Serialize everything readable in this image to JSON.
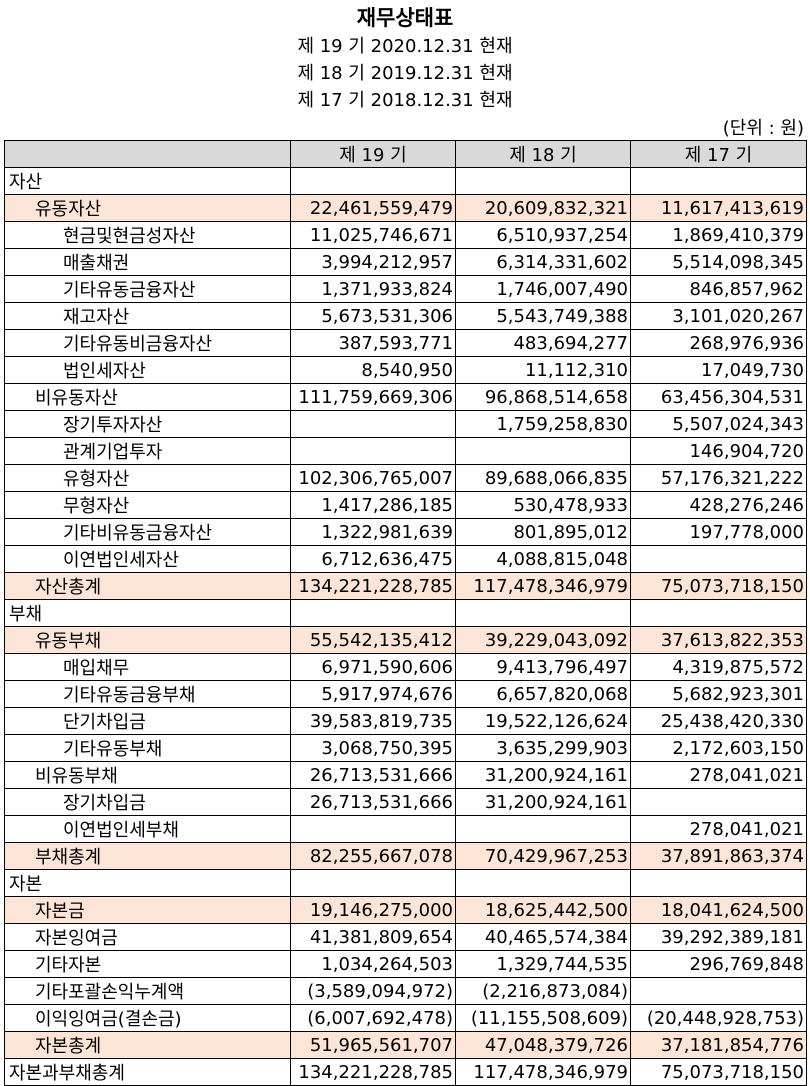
{
  "header": {
    "title": "재무상태표",
    "periods": [
      "제 19 기 2020.12.31 현재",
      "제 18 기 2019.12.31 현재",
      "제 17 기 2018.12.31 현재"
    ],
    "unit": "(단위 : 원)"
  },
  "table": {
    "columns": [
      "제 19 기",
      "제 18 기",
      "제 17 기"
    ],
    "rows": [
      [
        "자산",
        null,
        null,
        null
      ],
      [
        "유동자산",
        "22,461,559,479",
        "20,609,832,321",
        "11,617,413,619"
      ],
      [
        "현금및현금성자산",
        "11,025,746,671",
        "6,510,937,254",
        "1,869,410,379"
      ],
      [
        "매출채권",
        "3,994,212,957",
        "6,314,331,602",
        "5,514,098,345"
      ],
      [
        "기타유동금융자산",
        "1,371,933,824",
        "1,746,007,490",
        "846,857,962"
      ],
      [
        "재고자산",
        "5,673,531,306",
        "5,543,749,388",
        "3,101,020,267"
      ],
      [
        "기타유동비금융자산",
        "387,593,771",
        "483,694,277",
        "268,976,936"
      ],
      [
        "법인세자산",
        "8,540,950",
        "11,112,310",
        "17,049,730"
      ],
      [
        "비유동자산",
        "111,759,669,306",
        "96,868,514,658",
        "63,456,304,531"
      ],
      [
        "장기투자자산",
        null,
        "1,759,258,830",
        "5,507,024,343"
      ],
      [
        "관계기업투자",
        null,
        null,
        "146,904,720"
      ],
      [
        "유형자산",
        "102,306,765,007",
        "89,688,066,835",
        "57,176,321,222"
      ],
      [
        "무형자산",
        "1,417,286,185",
        "530,478,933",
        "428,276,246"
      ],
      [
        "기타비유동금융자산",
        "1,322,981,639",
        "801,895,012",
        "197,778,000"
      ],
      [
        "이연법인세자산",
        "6,712,636,475",
        "4,088,815,048",
        null
      ],
      [
        "자산총계",
        "134,221,228,785",
        "117,478,346,979",
        "75,073,718,150"
      ],
      [
        "부채",
        null,
        null,
        null
      ],
      [
        "유동부채",
        "55,542,135,412",
        "39,229,043,092",
        "37,613,822,353"
      ],
      [
        "매입채무",
        "6,971,590,606",
        "9,413,796,497",
        "4,319,875,572"
      ],
      [
        "기타유동금융부채",
        "5,917,974,676",
        "6,657,820,068",
        "5,682,923,301"
      ],
      [
        "단기차입금",
        "39,583,819,735",
        "19,522,126,624",
        "25,438,420,330"
      ],
      [
        "기타유동부채",
        "3,068,750,395",
        "3,635,299,903",
        "2,172,603,150"
      ],
      [
        "비유동부채",
        "26,713,531,666",
        "31,200,924,161",
        "278,041,021"
      ],
      [
        "장기차입금",
        "26,713,531,666",
        "31,200,924,161",
        null
      ],
      [
        "이연법인세부채",
        null,
        null,
        "278,041,021"
      ],
      [
        "부채총계",
        "82,255,667,078",
        "70,429,967,253",
        "37,891,863,374"
      ],
      [
        "자본",
        null,
        null,
        null
      ],
      [
        "자본금",
        "19,146,275,000",
        "18,625,442,500",
        "18,041,624,500"
      ],
      [
        "자본잉여금",
        "41,381,809,654",
        "40,465,574,384",
        "39,292,389,181"
      ],
      [
        "기타자본",
        "1,034,264,503",
        "1,329,744,535",
        "296,769,848"
      ],
      [
        "기타포괄손익누계액",
        "(3,589,094,972)",
        "(2,216,873,084)",
        null
      ],
      [
        "이익잉여금(결손금)",
        "(6,007,692,478)",
        "(11,155,508,609)",
        "(20,448,928,753)"
      ],
      [
        "자본총계",
        "51,965,561,707",
        "47,048,379,726",
        "37,181,854,776"
      ],
      [
        "자본과부채총계",
        "134,221,228,785",
        "117,478,346,979",
        "75,073,718,150"
      ]
    ]
  }
}
